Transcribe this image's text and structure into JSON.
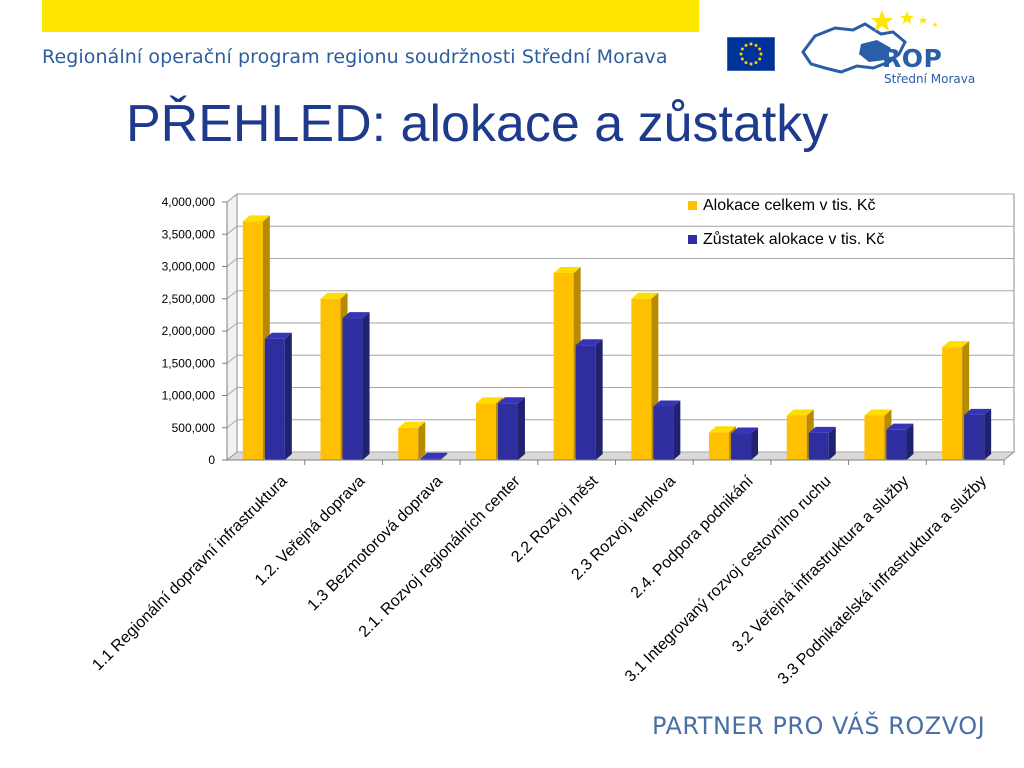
{
  "header": {
    "program_name": "Regionální operační program regionu soudržnosti Střední Morava",
    "logo_title": "ROP",
    "logo_subtitle": "Střední Morava"
  },
  "slide": {
    "title": "PŘEHLED: alokace a zůstatky"
  },
  "footer": {
    "slogan": "PARTNER PRO VÁŠ ROZVOJ"
  },
  "colors": {
    "accent_yellow": "#ffe600",
    "series_1": "#ffc000",
    "series_2": "#2e2e9e",
    "title": "#1e3a8c"
  },
  "icons": [
    "eu-flag-icon",
    "rop-logo-icon"
  ],
  "chart_data": {
    "type": "bar",
    "three_d": true,
    "title": "",
    "xlabel": "",
    "ylabel": "",
    "ylim": [
      0,
      4000000
    ],
    "yticks": [
      0,
      500000,
      1000000,
      1500000,
      2000000,
      2500000,
      3000000,
      3500000,
      4000000
    ],
    "ytick_labels": [
      "0",
      "500,000",
      "1,000,000",
      "1,500,000",
      "2,000,000",
      "2,500,000",
      "3,000,000",
      "3,500,000",
      "4,000,000"
    ],
    "grid": true,
    "legend_position": "top-right",
    "categories": [
      "1.1 Regionální dopravní infrastruktura",
      "1.2. Veřejná doprava",
      "1.3 Bezmotorová doprava",
      "2.1. Rozvoj regionálních center",
      "2.2 Rozvoj měst",
      "2.3 Rozvoj venkova",
      "2.4. Podpora podnikání",
      "3.1 Integrovaný rozvoj cestovního ruchu",
      "3.2 Veřejná infrastruktura a služby",
      "3.3 Podnikatelská infrastruktura a služby"
    ],
    "series": [
      {
        "name": "Alokace celkem v tis. Kč",
        "color": "#ffc000",
        "values": [
          3700000,
          2500000,
          500000,
          880000,
          2900000,
          2500000,
          430000,
          690000,
          690000,
          1750000
        ]
      },
      {
        "name": "Zůstatek alokace v tis. Kč",
        "color": "#2e2e9e",
        "values": [
          1880000,
          2200000,
          20000,
          880000,
          1780000,
          830000,
          410000,
          420000,
          470000,
          700000
        ]
      }
    ]
  }
}
